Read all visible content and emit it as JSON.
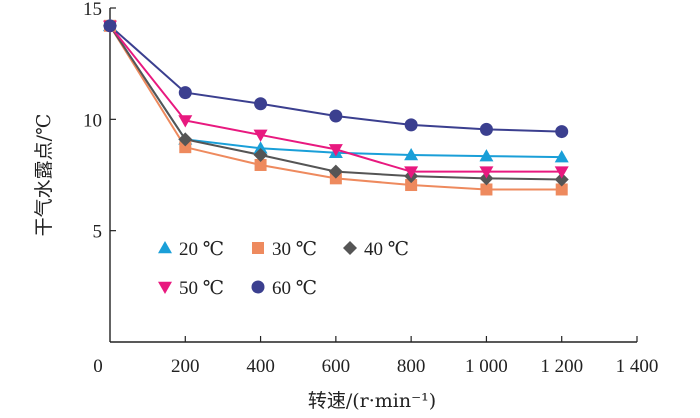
{
  "chart_data": {
    "type": "line",
    "xlabel": "转速/(r·min⁻¹)",
    "ylabel": "干气水露点/℃",
    "xlim": [
      0,
      1400
    ],
    "ylim": [
      0,
      15
    ],
    "x_ticks": [
      "0",
      "200",
      "400",
      "600",
      "800",
      "1 000",
      "1 200",
      "1 400"
    ],
    "y_ticks": [
      "5",
      "10",
      "15"
    ],
    "x_tick_values": [
      0,
      200,
      400,
      600,
      800,
      1000,
      1200,
      1400
    ],
    "y_tick_values": [
      5,
      10,
      15
    ],
    "grid": false,
    "legend_position": "bottom-left",
    "series": [
      {
        "name": "20 ℃",
        "marker": "triangle-up",
        "color": "#1a9fd8",
        "x": [
          0,
          200,
          400,
          600,
          800,
          1000,
          1200
        ],
        "y": [
          14.2,
          9.1,
          8.7,
          8.5,
          8.4,
          8.35,
          8.3
        ]
      },
      {
        "name": "30 ℃",
        "marker": "square",
        "color": "#ee8a5e",
        "x": [
          0,
          200,
          400,
          600,
          800,
          1000,
          1200
        ],
        "y": [
          14.2,
          8.75,
          7.95,
          7.35,
          7.05,
          6.85,
          6.85
        ]
      },
      {
        "name": "40 ℃",
        "marker": "diamond",
        "color": "#555555",
        "x": [
          0,
          200,
          400,
          600,
          800,
          1000,
          1200
        ],
        "y": [
          14.2,
          9.1,
          8.4,
          7.65,
          7.45,
          7.35,
          7.3
        ]
      },
      {
        "name": "50 ℃",
        "marker": "triangle-down",
        "color": "#e8197f",
        "x": [
          0,
          200,
          400,
          600,
          800,
          1000,
          1200
        ],
        "y": [
          14.2,
          9.95,
          9.3,
          8.65,
          7.65,
          7.65,
          7.65
        ]
      },
      {
        "name": "60 ℃",
        "marker": "circle",
        "color": "#3b3f8f",
        "x": [
          0,
          200,
          400,
          600,
          800,
          1000,
          1200
        ],
        "y": [
          14.2,
          11.2,
          10.7,
          10.15,
          9.75,
          9.55,
          9.45
        ]
      }
    ]
  }
}
